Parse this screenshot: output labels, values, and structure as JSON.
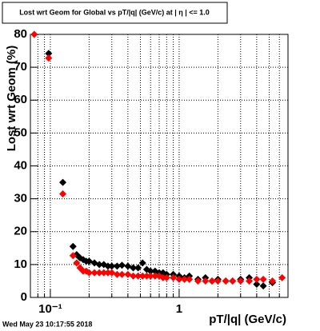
{
  "chart_data": {
    "type": "scatter",
    "title": "Lost wrt Geom for Global vs pT/|q| (GeV/c) at | η | <= 1.0",
    "xlabel": "pT/|q| (GeV/c)",
    "ylabel": "Lost wrt Geom (%)",
    "footer": "Wed May 23 10:17:55 2018",
    "xlog": true,
    "grid": true,
    "xlim": [
      0.07,
      7
    ],
    "ylim": [
      0,
      80
    ],
    "xticks": [
      {
        "value": 0.1,
        "label": "10⁻¹"
      },
      1
    ],
    "xminor_grid": [
      0.07,
      0.08,
      0.09,
      0.2,
      0.3,
      0.4,
      0.5,
      0.6,
      0.7,
      0.8,
      0.9,
      2,
      3,
      4,
      5,
      6,
      7
    ],
    "yticks": [
      0,
      10,
      20,
      30,
      40,
      50,
      60,
      70,
      80
    ],
    "x": [
      0.075,
      0.097,
      0.125,
      0.15,
      0.16,
      0.17,
      0.18,
      0.19,
      0.2,
      0.22,
      0.24,
      0.26,
      0.28,
      0.3,
      0.33,
      0.36,
      0.4,
      0.44,
      0.48,
      0.52,
      0.56,
      0.6,
      0.65,
      0.7,
      0.75,
      0.8,
      0.9,
      1.0,
      1.1,
      1.2,
      1.4,
      1.6,
      1.8,
      2.0,
      2.3,
      2.6,
      3.0,
      3.5,
      4.0,
      4.5,
      5.3,
      6.3
    ],
    "series": [
      {
        "color": "#000000",
        "values": [
          null,
          74.2,
          35,
          15.5,
          13,
          12,
          11.5,
          11,
          11,
          10.5,
          10,
          10,
          9.5,
          9.5,
          9.5,
          9.8,
          9.5,
          9,
          9,
          10.5,
          8.5,
          8,
          8,
          7.5,
          7.5,
          7,
          7,
          6.5,
          6,
          6.5,
          5.5,
          6,
          5,
          5.5,
          5,
          5,
          5.5,
          6,
          4,
          3.5,
          4.5,
          null
        ]
      },
      {
        "color": "#ff0000",
        "values": [
          80,
          72.8,
          31.5,
          12.7,
          10.5,
          9,
          8,
          8,
          7.5,
          7.5,
          7.5,
          7.5,
          7.5,
          7.5,
          7,
          7,
          7,
          6.5,
          6.5,
          6.5,
          6.5,
          6.5,
          6.5,
          6.5,
          6,
          6,
          6,
          5.5,
          5.5,
          5.5,
          5,
          5,
          5,
          5,
          5,
          5,
          5,
          5,
          5.5,
          5.5,
          5,
          6
        ]
      }
    ]
  }
}
